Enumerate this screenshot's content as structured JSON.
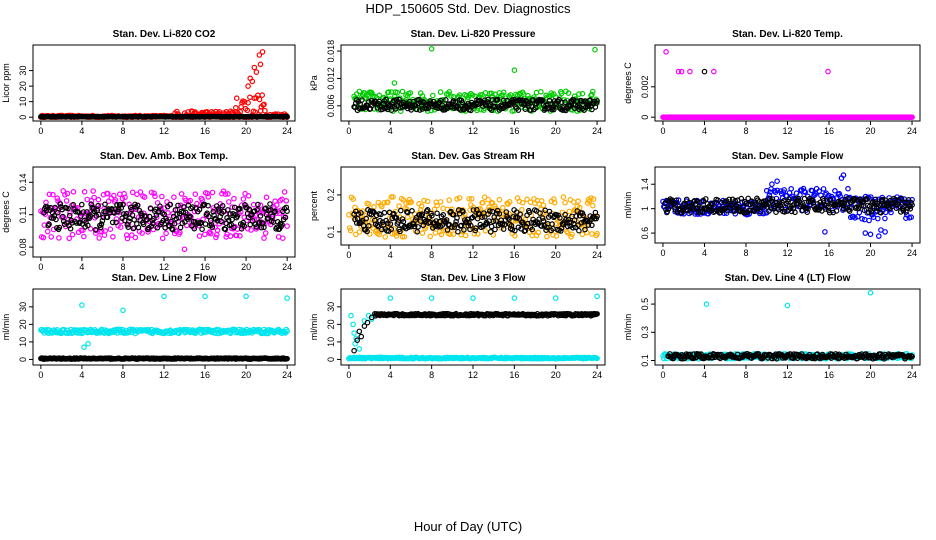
{
  "page": {
    "title": "HDP_150605  Std. Dev. Diagnostics",
    "x_caption": "Hour of Day (UTC)"
  },
  "chart_data": [
    {
      "type": "scatter",
      "title": "Stan. Dev. Li-820 CO2",
      "ylabel": "Licor ppm",
      "xlim": [
        0,
        24
      ],
      "ylim": [
        0,
        44
      ],
      "xticks": [
        0,
        4,
        8,
        12,
        16,
        20,
        24
      ],
      "yticks": [
        0,
        10,
        20,
        30
      ],
      "base_color": "#000000",
      "color": "#ff0000",
      "series": [
        {
          "name": "color",
          "segments": [
            {
              "from": 0,
              "to": 13,
              "level": 0.5,
              "jitter": 0.6
            },
            {
              "from": 13,
              "to": 19,
              "level": 1.5,
              "jitter": 2.5
            },
            {
              "from": 19,
              "to": 22,
              "level": 6,
              "jitter": 9
            },
            {
              "from": 22,
              "to": 24,
              "level": 1,
              "jitter": 1.5
            }
          ],
          "points": [
            [
              20.2,
              20
            ],
            [
              20.4,
              25
            ],
            [
              20.6,
              23
            ],
            [
              20.8,
              32
            ],
            [
              21.0,
              29
            ],
            [
              21.3,
              40
            ],
            [
              21.6,
              42
            ],
            [
              21.4,
              34
            ]
          ]
        },
        {
          "name": "black",
          "segments": [
            {
              "from": 0,
              "to": 24,
              "level": 0.3,
              "jitter": 0.1
            }
          ],
          "points": []
        }
      ]
    },
    {
      "type": "scatter",
      "title": "Stan. Dev. Li-820 Pressure",
      "ylabel": "kPa",
      "xlim": [
        0,
        24
      ],
      "ylim": [
        0.0035,
        0.0185
      ],
      "xticks": [
        0,
        4,
        8,
        12,
        16,
        20,
        24
      ],
      "yticks": [
        0.006,
        0.012,
        0.018
      ],
      "base_color": "#000000",
      "color": "#00cc00",
      "series": [
        {
          "name": "color",
          "segments": [
            {
              "from": 0.5,
              "to": 24,
              "level": 0.007,
              "jitter": 0.0022
            }
          ],
          "points": [
            [
              8,
              0.0185
            ],
            [
              16,
              0.0138
            ],
            [
              23.8,
              0.0183
            ],
            [
              4.4,
              0.011
            ]
          ]
        },
        {
          "name": "black",
          "segments": [
            {
              "from": 0.5,
              "to": 24,
              "level": 0.0062,
              "jitter": 0.0012
            }
          ],
          "points": []
        }
      ]
    },
    {
      "type": "scatter",
      "title": "Stan. Dev. Li-820 Temp.",
      "ylabel": "degrees C",
      "xlim": [
        0,
        24
      ],
      "ylim": [
        0,
        0.0045
      ],
      "xticks": [
        0,
        4,
        8,
        12,
        16,
        20,
        24
      ],
      "yticks": [
        0.0,
        0.002
      ],
      "base_color": "#000000",
      "color": "#ff00ff",
      "series": [
        {
          "name": "color",
          "segments": [],
          "points": [
            [
              0.3,
              0.0043
            ],
            [
              1.5,
              0.003
            ],
            [
              1.8,
              0.003
            ],
            [
              2.6,
              0.003
            ],
            [
              4.9,
              0.003
            ],
            [
              15.9,
              0.003
            ]
          ]
        },
        {
          "name": "black",
          "segments": [],
          "points": [
            [
              4.0,
              0.003
            ]
          ]
        },
        {
          "name": "color-base",
          "segments": [
            {
              "from": 0,
              "to": 24,
              "level": 0.0,
              "jitter": 0
            }
          ],
          "points": []
        }
      ]
    },
    {
      "type": "scatter",
      "title": "Stan. Dev. Amb. Box Temp.",
      "ylabel": "degrees C",
      "xlim": [
        0,
        24
      ],
      "ylim": [
        0.075,
        0.15
      ],
      "xticks": [
        0,
        4,
        8,
        12,
        16,
        20,
        24
      ],
      "yticks": [
        0.08,
        0.11,
        0.14
      ],
      "base_color": "#000000",
      "color": "#ff00ff",
      "series": [
        {
          "name": "color",
          "segments": [
            {
              "from": 0,
              "to": 24,
              "level": 0.11,
              "jitter": 0.022
            }
          ],
          "points": [
            [
              14,
              0.078
            ]
          ]
        },
        {
          "name": "black",
          "segments": [
            {
              "from": 0.3,
              "to": 24,
              "level": 0.108,
              "jitter": 0.012
            }
          ],
          "points": []
        }
      ]
    },
    {
      "type": "scatter",
      "title": "Stan. Dev. Gas Stream RH",
      "ylabel": "percent",
      "xlim": [
        0,
        24
      ],
      "ylim": [
        0.075,
        0.265
      ],
      "xticks": [
        0,
        4,
        8,
        12,
        16,
        20,
        24
      ],
      "yticks": [
        0.1,
        0.2
      ],
      "base_color": "#000000",
      "color": "#ffaa00",
      "series": [
        {
          "name": "color",
          "segments": [
            {
              "from": 0,
              "to": 24,
              "level": 0.14,
              "jitter": 0.055
            }
          ],
          "points": []
        },
        {
          "name": "black",
          "segments": [
            {
              "from": 0.5,
              "to": 24,
              "level": 0.13,
              "jitter": 0.03
            }
          ],
          "points": []
        }
      ]
    },
    {
      "type": "scatter",
      "title": "Stan. Dev. Sample Flow",
      "ylabel": "ml/min",
      "xlim": [
        0,
        24
      ],
      "ylim": [
        0.5,
        1.62
      ],
      "xticks": [
        0,
        4,
        8,
        12,
        16,
        20,
        24
      ],
      "yticks": [
        0.6,
        1.0,
        1.4
      ],
      "base_color": "#000000",
      "color": "#0000ff",
      "series": [
        {
          "name": "color",
          "segments": [
            {
              "from": 0,
              "to": 10,
              "level": 1.02,
              "jitter": 0.12
            },
            {
              "from": 10,
              "to": 18,
              "level": 1.15,
              "jitter": 0.18
            },
            {
              "from": 18,
              "to": 24,
              "level": 1.0,
              "jitter": 0.2
            }
          ],
          "points": [
            [
              10.5,
              1.4
            ],
            [
              11,
              1.45
            ],
            [
              17.2,
              1.5
            ],
            [
              17.4,
              1.55
            ],
            [
              18.5,
              0.85
            ],
            [
              19.5,
              0.6
            ],
            [
              20,
              0.58
            ],
            [
              20.8,
              0.55
            ],
            [
              21,
              0.65
            ],
            [
              21.4,
              0.62
            ],
            [
              15.6,
              0.62
            ]
          ]
        },
        {
          "name": "black",
          "segments": [
            {
              "from": 0.2,
              "to": 24,
              "level": 1.05,
              "jitter": 0.12
            }
          ],
          "points": []
        }
      ]
    },
    {
      "type": "scatter",
      "title": "Stan. Dev. Line 2 Flow",
      "ylabel": "ml/min",
      "xlim": [
        0,
        24
      ],
      "ylim": [
        -1,
        38
      ],
      "xticks": [
        0,
        4,
        8,
        12,
        16,
        20,
        24
      ],
      "yticks": [
        0,
        10,
        20,
        30
      ],
      "base_color": "#000000",
      "color": "#00e5ee",
      "series": [
        {
          "name": "color",
          "segments": [
            {
              "from": 0,
              "to": 24,
              "level": 16,
              "jitter": 1.2
            }
          ],
          "points": [
            [
              4,
              31
            ],
            [
              8,
              28
            ],
            [
              12,
              36
            ],
            [
              16,
              36
            ],
            [
              20,
              36
            ],
            [
              24,
              35
            ],
            [
              4.2,
              7
            ],
            [
              4.6,
              9
            ]
          ]
        },
        {
          "name": "black",
          "segments": [
            {
              "from": 0,
              "to": 24,
              "level": 0.5,
              "jitter": 0.3
            }
          ],
          "points": []
        }
      ]
    },
    {
      "type": "scatter",
      "title": "Stan. Dev. Line 3 Flow",
      "ylabel": "ml/min",
      "xlim": [
        0,
        24
      ],
      "ylim": [
        -1,
        38
      ],
      "xticks": [
        0,
        4,
        8,
        12,
        16,
        20,
        24
      ],
      "yticks": [
        0,
        10,
        20,
        30
      ],
      "base_color": "#000000",
      "color": "#00e5ee",
      "series": [
        {
          "name": "color",
          "segments": [
            {
              "from": 0,
              "to": 24,
              "level": 0.8,
              "jitter": 0.4
            }
          ],
          "points": [
            [
              0.2,
              25
            ],
            [
              0.4,
              20
            ],
            [
              0.5,
              15
            ],
            [
              0.6,
              9
            ],
            [
              0.7,
              12
            ],
            [
              1.0,
              6
            ],
            [
              1.5,
              22
            ],
            [
              1.9,
              25
            ],
            [
              2.2,
              23
            ],
            [
              4,
              35
            ],
            [
              8,
              35
            ],
            [
              12,
              35
            ],
            [
              16,
              35
            ],
            [
              20,
              35
            ],
            [
              24,
              36
            ]
          ]
        },
        {
          "name": "black",
          "segments": [
            {
              "from": 2.5,
              "to": 24,
              "level": 25.5,
              "jitter": 0.6
            }
          ],
          "points": [
            [
              0.5,
              5
            ],
            [
              0.8,
              11
            ],
            [
              1.0,
              16
            ],
            [
              1.2,
              13
            ],
            [
              1.5,
              19
            ],
            [
              1.8,
              21
            ],
            [
              2.2,
              24
            ]
          ]
        }
      ]
    },
    {
      "type": "scatter",
      "title": "Stan. Dev. Line 4 (LT) Flow",
      "ylabel": "ml/min",
      "xlim": [
        0,
        24
      ],
      "ylim": [
        0.095,
        0.58
      ],
      "xticks": [
        0,
        4,
        8,
        12,
        16,
        20,
        24
      ],
      "yticks": [
        0.1,
        0.3,
        0.5
      ],
      "base_color": "#000000",
      "color": "#00e5ee",
      "series": [
        {
          "name": "color",
          "segments": [
            {
              "from": 0,
              "to": 24,
              "level": 0.13,
              "jitter": 0.018
            }
          ],
          "points": [
            [
              4.2,
              0.5
            ],
            [
              12,
              0.49
            ],
            [
              20,
              0.58
            ]
          ]
        },
        {
          "name": "black",
          "segments": [
            {
              "from": 0.5,
              "to": 24,
              "level": 0.13,
              "jitter": 0.018
            }
          ],
          "points": []
        }
      ]
    }
  ]
}
